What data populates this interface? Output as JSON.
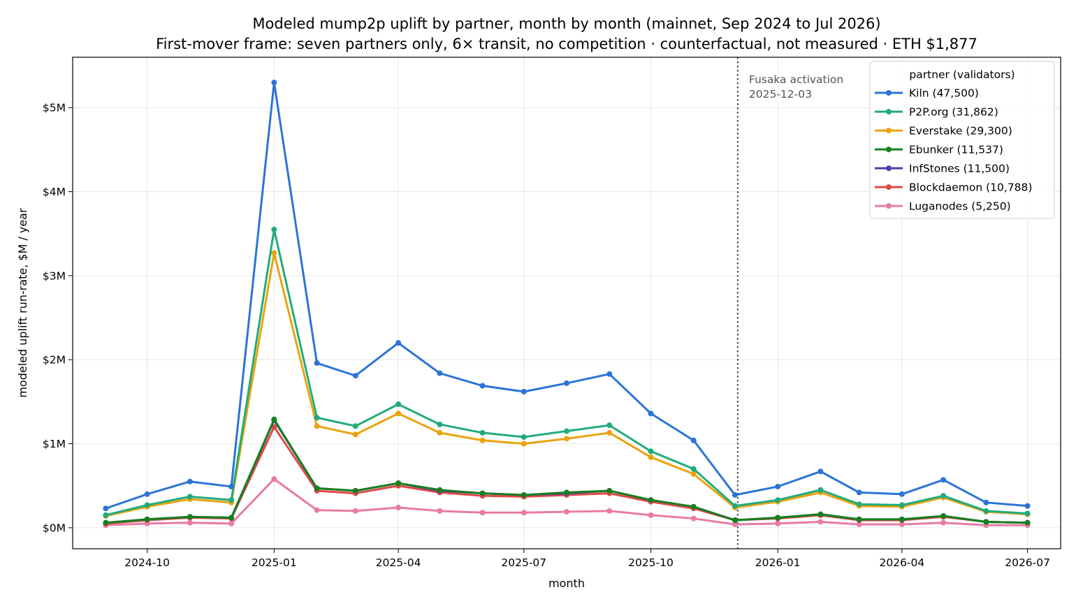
{
  "chart_data": {
    "type": "line",
    "title": "Modeled mump2p uplift by partner, month by month (mainnet, Sep 2024 to Jul 2026)",
    "subtitle": "First-mover frame: seven partners only, 6× transit, no competition · counterfactual, not measured · ETH $1,877",
    "xlabel": "month",
    "ylabel": "modeled uplift run-rate, $M / year",
    "x": [
      "2024-09",
      "2024-10",
      "2024-11",
      "2024-12",
      "2025-01",
      "2025-02",
      "2025-03",
      "2025-04",
      "2025-05",
      "2025-06",
      "2025-07",
      "2025-08",
      "2025-09",
      "2025-10",
      "2025-11",
      "2025-12",
      "2026-01",
      "2026-02",
      "2026-03",
      "2026-04",
      "2026-05",
      "2026-06",
      "2026-07"
    ],
    "xlim": [
      "2024-08-08",
      "2026-07-25"
    ],
    "ylim": [
      -0.25,
      5.6
    ],
    "y_ticks": [
      {
        "value": 0,
        "label": "$0M"
      },
      {
        "value": 1,
        "label": "$1M"
      },
      {
        "value": 2,
        "label": "$2M"
      },
      {
        "value": 3,
        "label": "$3M"
      },
      {
        "value": 4,
        "label": "$4M"
      },
      {
        "value": 5,
        "label": "$5M"
      }
    ],
    "x_ticks": [
      {
        "value": "2024-10-01",
        "label": "2024-10"
      },
      {
        "value": "2025-01-01",
        "label": "2025-01"
      },
      {
        "value": "2025-04-01",
        "label": "2025-04"
      },
      {
        "value": "2025-07-01",
        "label": "2025-07"
      },
      {
        "value": "2025-10-01",
        "label": "2025-10"
      },
      {
        "value": "2026-01-01",
        "label": "2026-01"
      },
      {
        "value": "2026-04-01",
        "label": "2026-04"
      },
      {
        "value": "2026-07-01",
        "label": "2026-07"
      }
    ],
    "grid": true,
    "legend": {
      "title": "partner (validators)",
      "placement": "top-right"
    },
    "annotation": {
      "date": "2025-12-03",
      "line1": "Fusaka activation",
      "line2": "2025-12-03",
      "color": "#555555"
    },
    "series": [
      {
        "name": "Kiln (47,500)",
        "color": "#2b74d6",
        "values": [
          0.23,
          0.4,
          0.55,
          0.49,
          5.3,
          1.96,
          1.81,
          2.2,
          1.84,
          1.69,
          1.62,
          1.72,
          1.83,
          1.36,
          1.04,
          0.39,
          0.49,
          0.67,
          0.42,
          0.4,
          0.57,
          0.3,
          0.26
        ]
      },
      {
        "name": "P2P.org (31,862)",
        "color": "#21ab7d",
        "values": [
          0.15,
          0.27,
          0.37,
          0.33,
          3.55,
          1.31,
          1.21,
          1.47,
          1.23,
          1.13,
          1.08,
          1.15,
          1.22,
          0.91,
          0.7,
          0.26,
          0.33,
          0.45,
          0.28,
          0.27,
          0.38,
          0.2,
          0.17
        ]
      },
      {
        "name": "Everstake (29,300)",
        "color": "#eba20e",
        "values": [
          0.14,
          0.25,
          0.34,
          0.3,
          3.27,
          1.21,
          1.11,
          1.36,
          1.13,
          1.04,
          1.0,
          1.06,
          1.13,
          0.84,
          0.64,
          0.24,
          0.31,
          0.42,
          0.26,
          0.25,
          0.36,
          0.19,
          0.16
        ]
      },
      {
        "name": "Ebunker (11,537)",
        "color": "#17801e",
        "values": [
          0.06,
          0.1,
          0.13,
          0.12,
          1.29,
          0.47,
          0.44,
          0.53,
          0.45,
          0.41,
          0.39,
          0.42,
          0.44,
          0.33,
          0.25,
          0.09,
          0.12,
          0.16,
          0.1,
          0.1,
          0.14,
          0.07,
          0.06
        ]
      },
      {
        "name": "InfStones (11,500)",
        "color": "#4a3fa8",
        "values": [
          0.06,
          0.1,
          0.13,
          0.12,
          1.28,
          0.47,
          0.44,
          0.53,
          0.44,
          0.41,
          0.39,
          0.41,
          0.44,
          0.33,
          0.25,
          0.09,
          0.12,
          0.16,
          0.1,
          0.1,
          0.14,
          0.07,
          0.06
        ]
      },
      {
        "name": "Blockdaemon (10,788)",
        "color": "#e04848",
        "values": [
          0.05,
          0.09,
          0.12,
          0.11,
          1.2,
          0.44,
          0.41,
          0.5,
          0.42,
          0.38,
          0.37,
          0.39,
          0.41,
          0.31,
          0.23,
          0.09,
          0.11,
          0.15,
          0.09,
          0.09,
          0.13,
          0.07,
          0.06
        ]
      },
      {
        "name": "Luganodes (5,250)",
        "color": "#e87ba4",
        "values": [
          0.03,
          0.05,
          0.06,
          0.05,
          0.58,
          0.21,
          0.2,
          0.24,
          0.2,
          0.18,
          0.18,
          0.19,
          0.2,
          0.15,
          0.11,
          0.04,
          0.05,
          0.07,
          0.04,
          0.04,
          0.06,
          0.03,
          0.03
        ]
      }
    ]
  }
}
